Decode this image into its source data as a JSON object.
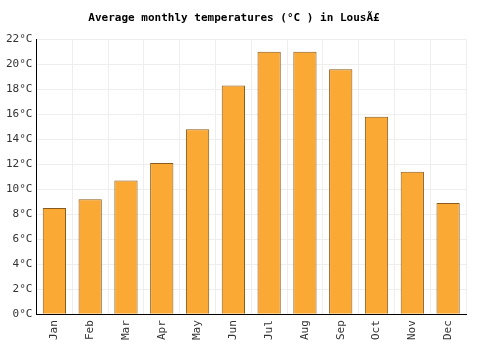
{
  "chart_data": {
    "type": "bar",
    "title": "Average monthly temperatures (°C ) in LousÃ£",
    "categories": [
      "Jan",
      "Feb",
      "Mar",
      "Apr",
      "May",
      "Jun",
      "Jul",
      "Aug",
      "Sep",
      "Oct",
      "Nov",
      "Dec"
    ],
    "values": [
      8.5,
      9.2,
      10.7,
      12.1,
      14.8,
      18.3,
      21.0,
      21.0,
      19.6,
      15.8,
      11.4,
      8.9
    ],
    "color": "#fba935",
    "ylim": [
      0,
      22
    ],
    "yticks": [
      {
        "value": 0,
        "label": "0°C"
      },
      {
        "value": 2,
        "label": "2°C"
      },
      {
        "value": 4,
        "label": "4°C"
      },
      {
        "value": 6,
        "label": "6°C"
      },
      {
        "value": 8,
        "label": "8°C"
      },
      {
        "value": 10,
        "label": "10°C"
      },
      {
        "value": 12,
        "label": "12°C"
      },
      {
        "value": 14,
        "label": "14°C"
      },
      {
        "value": 16,
        "label": "16°C"
      },
      {
        "value": 18,
        "label": "18°C"
      },
      {
        "value": 20,
        "label": "20°C"
      },
      {
        "value": 22,
        "label": "22°C"
      }
    ],
    "grid": true
  }
}
